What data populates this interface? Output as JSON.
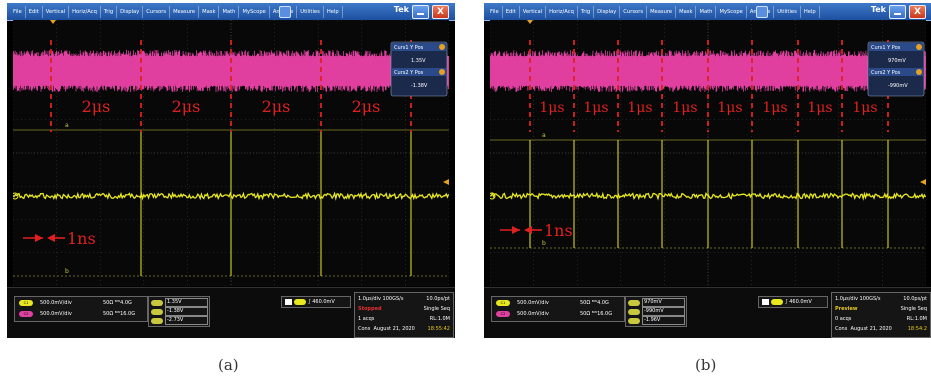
{
  "menu_items": [
    "File",
    "Edit",
    "Vertical",
    "Horiz/Acq",
    "Trig",
    "Display",
    "Cursors",
    "Measure",
    "Mask",
    "Math",
    "MyScope",
    "Analyze",
    "Utilities",
    "Help"
  ],
  "brand": "Tek",
  "close_glyph": "X",
  "colors": {
    "ch1": "#e8e820",
    "ch2": "#e040a0",
    "cursor": "#c8c840",
    "annotation": "#e02020",
    "menu_bg": "#2a62b8"
  },
  "panels": [
    {
      "caption": "(a)",
      "cursor_readout": {
        "curs1_label": "Curs1 Y Pos",
        "curs1_value": "1.35V",
        "curs2_label": "Curs2 Y Pos",
        "curs2_value": "-1.38V"
      },
      "interval_labels": [
        "2μs",
        "2μs",
        "2μs",
        "2μs"
      ],
      "width_label": "1ns",
      "channels": [
        {
          "badge": "C1",
          "scale": "500.0mV/div",
          "impedance": "50Ω",
          "bandwidth": "4.0G"
        },
        {
          "badge": "C2",
          "scale": "500.0mV/div",
          "impedance": "50Ω",
          "bandwidth": "16.0G"
        }
      ],
      "cursor_values": {
        "a": "1.35V",
        "b": "-1.38V",
        "delta": "-2.73V"
      },
      "trigger": {
        "source": "C1",
        "level": "460.0mV"
      },
      "acquisition": {
        "timebase": "1.0μs/div",
        "sample_rate": "100GS/s",
        "resolution": "10.0ps/pt",
        "state": "Stopped",
        "mode": "Single Seq",
        "acqs": "1 acqs",
        "record_length": "RL:1.0M",
        "date_label": "Cons",
        "date": "August 21, 2020",
        "time": "18:55:42"
      }
    },
    {
      "caption": "(b)",
      "cursor_readout": {
        "curs1_label": "Curs1 Y Pos",
        "curs1_value": "970mV",
        "curs2_label": "Curs2 Y Pos",
        "curs2_value": "-990mV"
      },
      "interval_labels": [
        "1μs",
        "1μs",
        "1μs",
        "1μs",
        "1μs",
        "1μs",
        "1μs",
        "1μs"
      ],
      "width_label": "1ns",
      "channels": [
        {
          "badge": "C1",
          "scale": "500.0mV/div",
          "impedance": "50Ω",
          "bandwidth": "4.0G"
        },
        {
          "badge": "C2",
          "scale": "500.0mV/div",
          "impedance": "50Ω",
          "bandwidth": "16.0G"
        }
      ],
      "cursor_values": {
        "a": "970mV",
        "b": "-990mV",
        "delta": "-1.96V"
      },
      "trigger": {
        "source": "C1",
        "level": "460.0mV"
      },
      "acquisition": {
        "timebase": "1.0μs/div",
        "sample_rate": "100GS/s",
        "resolution": "10.0ps/pt",
        "state": "Preview",
        "mode": "Single Seq",
        "acqs": "0 acqs",
        "record_length": "RL:1.0M",
        "date_label": "Cons",
        "date": "August 21, 2020",
        "time": "18:54:2"
      }
    }
  ]
}
